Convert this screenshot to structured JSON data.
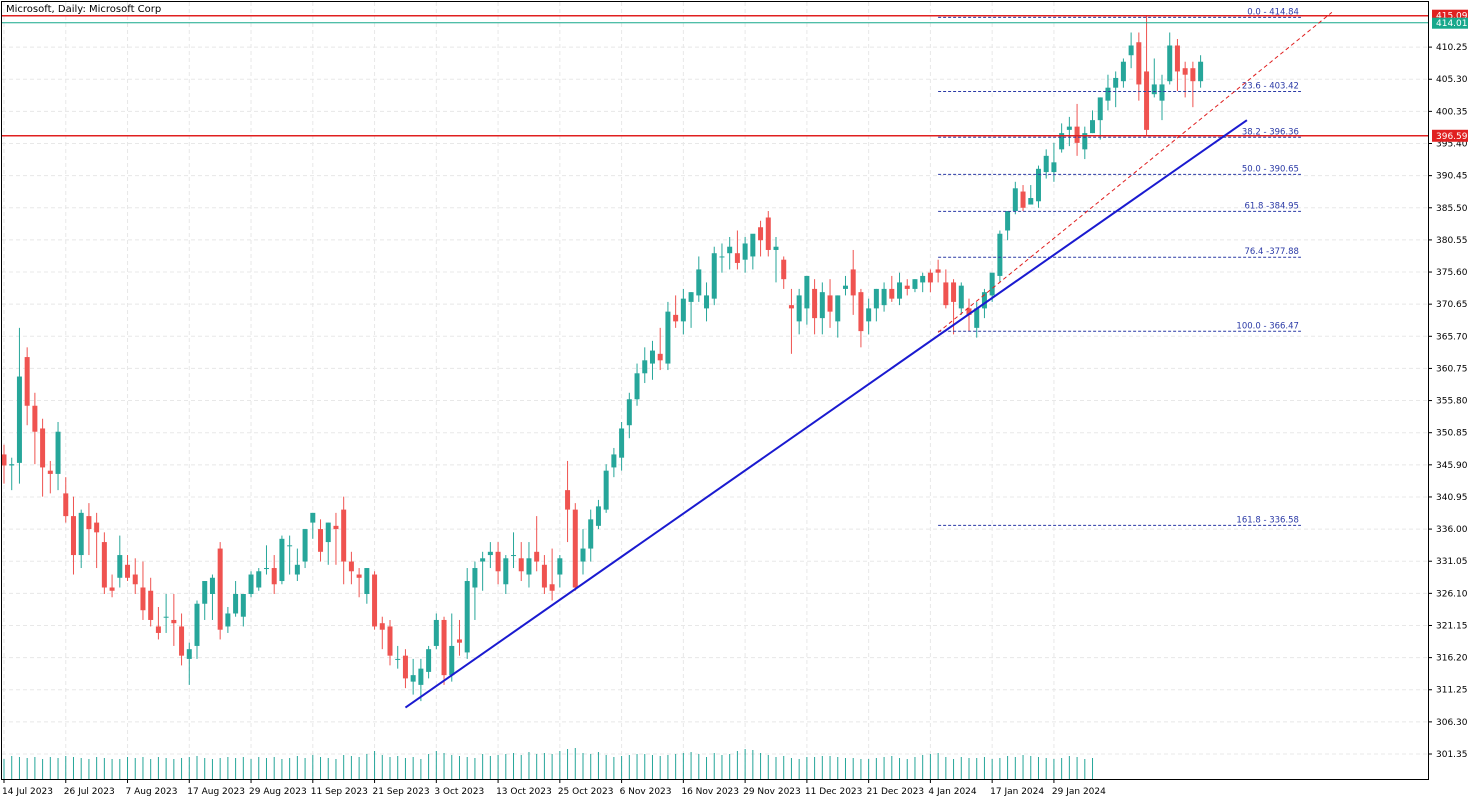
{
  "chart_data": {
    "type": "candlestick",
    "title": "Microsoft, Daily:  Microsoft Corp",
    "ylim": [
      297.5,
      417.2
    ],
    "yticks": [
      "410.25",
      "405.30",
      "400.35",
      "395.40",
      "390.45",
      "385.50",
      "380.55",
      "375.60",
      "370.65",
      "365.70",
      "360.75",
      "355.80",
      "350.85",
      "345.90",
      "340.95",
      "336.00",
      "331.05",
      "326.10",
      "321.15",
      "316.20",
      "311.25",
      "306.30",
      "301.35"
    ],
    "xticks": [
      {
        "label": "14 Jul 2023",
        "index": 0
      },
      {
        "label": "26 Jul 2023",
        "index": 8
      },
      {
        "label": "7 Aug 2023",
        "index": 16
      },
      {
        "label": "17 Aug 2023",
        "index": 24
      },
      {
        "label": "29 Aug 2023",
        "index": 32
      },
      {
        "label": "11 Sep 2023",
        "index": 40
      },
      {
        "label": "21 Sep 2023",
        "index": 48
      },
      {
        "label": "3 Oct 2023",
        "index": 56
      },
      {
        "label": "13 Oct 2023",
        "index": 64
      },
      {
        "label": "25 Oct 2023",
        "index": 72
      },
      {
        "label": "6 Nov 2023",
        "index": 80
      },
      {
        "label": "16 Nov 2023",
        "index": 88
      },
      {
        "label": "29 Nov 2023",
        "index": 96
      },
      {
        "label": "11 Dec 2023",
        "index": 104
      },
      {
        "label": "21 Dec 2023",
        "index": 112
      },
      {
        "label": "4 Jan 2024",
        "index": 120
      },
      {
        "label": "17 Jan 2024",
        "index": 128
      },
      {
        "label": "29 Jan 2024",
        "index": 136
      }
    ],
    "candles": [
      [
        347.5,
        349.0,
        343.0,
        345.8
      ],
      [
        345.8,
        347.0,
        342.0,
        346.0
      ],
      [
        346.2,
        367.0,
        343.0,
        359.5
      ],
      [
        362.5,
        364.0,
        352.0,
        355.0
      ],
      [
        355.0,
        357.0,
        346.0,
        351.0
      ],
      [
        351.5,
        353.0,
        341.0,
        345.5
      ],
      [
        345.0,
        346.5,
        341.5,
        344.5
      ],
      [
        344.5,
        352.5,
        342.0,
        351.0
      ],
      [
        341.5,
        344.0,
        337.0,
        338.0
      ],
      [
        338.0,
        341.0,
        329.0,
        332.0
      ],
      [
        332.0,
        339.0,
        330.0,
        338.5
      ],
      [
        338.0,
        340.0,
        332.0,
        336.0
      ],
      [
        337.0,
        338.5,
        330.0,
        335.5
      ],
      [
        334.0,
        335.5,
        326.0,
        327.0
      ],
      [
        327.0,
        329.0,
        325.5,
        326.5
      ],
      [
        328.5,
        335.0,
        327.0,
        332.0
      ],
      [
        330.5,
        332.0,
        328.0,
        328.5
      ],
      [
        329.0,
        331.5,
        326.0,
        327.5
      ],
      [
        327.0,
        331.0,
        322.0,
        323.5
      ],
      [
        326.5,
        328.5,
        321.0,
        322.0
      ],
      [
        321.0,
        324.0,
        319.0,
        320.0
      ],
      [
        322.5,
        326.0,
        320.0,
        322.5
      ],
      [
        322.0,
        326.0,
        318.0,
        321.5
      ],
      [
        321.0,
        323.0,
        315.0,
        316.5
      ],
      [
        316.0,
        318.5,
        312.0,
        317.5
      ],
      [
        318.0,
        325.0,
        316.0,
        324.5
      ],
      [
        324.5,
        328.0,
        322.0,
        328.0
      ],
      [
        326.0,
        329.0,
        322.0,
        328.5
      ],
      [
        333.0,
        334.0,
        319.0,
        320.5
      ],
      [
        321.0,
        324.0,
        320.0,
        323.0
      ],
      [
        323.0,
        328.0,
        322.5,
        326.0
      ],
      [
        322.5,
        325.5,
        321.0,
        326.0
      ],
      [
        326.0,
        329.5,
        325.5,
        329.0
      ],
      [
        327.0,
        330.0,
        326.5,
        329.5
      ],
      [
        330.0,
        333.5,
        329.0,
        330.0
      ],
      [
        330.0,
        332.0,
        326.0,
        327.5
      ],
      [
        328.0,
        335.0,
        327.5,
        334.5
      ],
      [
        333.5,
        335.0,
        329.0,
        333.5
      ],
      [
        329.0,
        333.0,
        328.0,
        330.5
      ],
      [
        331.0,
        336.0,
        330.0,
        336.0
      ],
      [
        337.0,
        338.5,
        334.5,
        338.5
      ],
      [
        336.0,
        337.5,
        331.0,
        332.5
      ],
      [
        334.0,
        337.0,
        330.5,
        337.0
      ],
      [
        336.5,
        338.5,
        330.5,
        336.0
      ],
      [
        339.0,
        341.0,
        327.5,
        331.0
      ],
      [
        331.0,
        332.5,
        327.5,
        329.5
      ],
      [
        329.0,
        330.0,
        325.5,
        328.5
      ],
      [
        326.0,
        330.0,
        324.5,
        330.0
      ],
      [
        329.0,
        329.5,
        320.5,
        321.0
      ],
      [
        321.5,
        322.5,
        317.5,
        320.5
      ],
      [
        321.0,
        322.0,
        315.0,
        316.5
      ],
      [
        316.0,
        318.0,
        314.5,
        316.0
      ],
      [
        316.5,
        317.5,
        311.5,
        313.0
      ],
      [
        312.5,
        316.0,
        310.5,
        313.5
      ],
      [
        312.0,
        316.0,
        309.5,
        314.5
      ],
      [
        314.0,
        318.0,
        313.0,
        317.5
      ],
      [
        318.0,
        323.0,
        317.5,
        322.0
      ],
      [
        322.0,
        322.5,
        312.0,
        313.5
      ],
      [
        313.5,
        323.0,
        312.5,
        318.0
      ],
      [
        319.0,
        322.0,
        316.5,
        318.5
      ],
      [
        317.0,
        330.0,
        316.0,
        328.0
      ],
      [
        327.0,
        331.0,
        322.0,
        330.0
      ],
      [
        331.0,
        332.5,
        326.5,
        331.5
      ],
      [
        332.0,
        334.0,
        330.0,
        332.5
      ],
      [
        332.5,
        334.0,
        327.5,
        329.5
      ],
      [
        327.5,
        332.0,
        326.0,
        331.5
      ],
      [
        332.0,
        335.5,
        330.0,
        332.0
      ],
      [
        331.5,
        334.0,
        328.0,
        329.5
      ],
      [
        329.0,
        334.0,
        327.0,
        331.5
      ],
      [
        332.5,
        338.0,
        329.5,
        331.0
      ],
      [
        330.5,
        332.0,
        326.0,
        327.0
      ],
      [
        327.5,
        333.0,
        325.0,
        326.5
      ],
      [
        329.0,
        332.0,
        327.0,
        331.5
      ],
      [
        342.0,
        346.5,
        334.0,
        339.0
      ],
      [
        339.0,
        340.0,
        326.5,
        327.0
      ],
      [
        331.0,
        336.0,
        329.0,
        333.0
      ],
      [
        333.0,
        339.0,
        331.0,
        337.5
      ],
      [
        336.5,
        340.5,
        336.0,
        339.5
      ],
      [
        339.0,
        346.0,
        338.5,
        345.0
      ],
      [
        345.5,
        348.5,
        344.0,
        347.5
      ],
      [
        347.0,
        352.5,
        345.0,
        351.5
      ],
      [
        352.0,
        357.0,
        350.0,
        356.0
      ],
      [
        356.0,
        361.5,
        355.0,
        360.0
      ],
      [
        360.0,
        364.0,
        358.5,
        362.0
      ],
      [
        361.5,
        365.0,
        359.0,
        363.5
      ],
      [
        363.0,
        367.0,
        360.5,
        362.0
      ],
      [
        361.5,
        371.0,
        360.5,
        369.5
      ],
      [
        369.0,
        372.0,
        367.0,
        368.0
      ],
      [
        368.0,
        373.0,
        366.0,
        371.5
      ],
      [
        371.0,
        372.5,
        367.0,
        372.5
      ],
      [
        372.0,
        378.0,
        371.0,
        376.0
      ],
      [
        370.0,
        374.0,
        368.0,
        372.0
      ],
      [
        371.5,
        379.5,
        370.5,
        378.5
      ],
      [
        378.0,
        380.0,
        375.5,
        378.0
      ],
      [
        378.5,
        381.0,
        376.0,
        379.5
      ],
      [
        378.5,
        382.0,
        376.0,
        377.0
      ],
      [
        377.5,
        381.0,
        375.5,
        380.0
      ],
      [
        378.0,
        381.0,
        376.0,
        381.5
      ],
      [
        382.5,
        383.5,
        378.0,
        380.5
      ],
      [
        384.0,
        385.0,
        378.0,
        379.0
      ],
      [
        379.0,
        381.0,
        374.0,
        379.5
      ],
      [
        377.5,
        378.0,
        373.0,
        374.5
      ],
      [
        370.5,
        373.0,
        363.0,
        370.0
      ],
      [
        368.0,
        373.0,
        366.0,
        372.0
      ],
      [
        370.0,
        375.0,
        367.5,
        375.0
      ],
      [
        373.0,
        374.5,
        366.0,
        368.5
      ],
      [
        368.5,
        374.0,
        366.0,
        372.5
      ],
      [
        372.0,
        374.5,
        367.0,
        369.5
      ],
      [
        368.0,
        372.0,
        365.5,
        372.0
      ],
      [
        373.0,
        375.0,
        372.0,
        373.5
      ],
      [
        376.0,
        379.0,
        369.0,
        372.0
      ],
      [
        372.5,
        373.0,
        364.0,
        366.5
      ],
      [
        368.0,
        371.5,
        366.0,
        370.0
      ],
      [
        370.0,
        373.0,
        368.0,
        373.0
      ],
      [
        370.5,
        374.0,
        369.5,
        373.0
      ],
      [
        373.0,
        375.0,
        371.0,
        371.5
      ],
      [
        371.5,
        375.5,
        370.5,
        374.0
      ],
      [
        373.5,
        374.5,
        372.0,
        373.0
      ],
      [
        373.0,
        374.5,
        372.5,
        374.5
      ],
      [
        374.0,
        375.5,
        372.5,
        375.0
      ],
      [
        375.5,
        376.0,
        372.5,
        374.0
      ],
      [
        376.0,
        377.5,
        374.0,
        375.5
      ],
      [
        374.0,
        376.0,
        370.0,
        370.5
      ],
      [
        374.0,
        374.5,
        366.0,
        371.0
      ],
      [
        370.0,
        374.0,
        369.0,
        373.5
      ],
      [
        370.0,
        371.5,
        366.5,
        369.0
      ],
      [
        367.0,
        371.0,
        365.5,
        370.0
      ],
      [
        370.0,
        373.0,
        368.5,
        372.5
      ],
      [
        372.0,
        375.0,
        371.0,
        375.5
      ],
      [
        375.0,
        382.0,
        374.0,
        381.5
      ],
      [
        382.0,
        385.0,
        380.5,
        385.0
      ],
      [
        385.0,
        389.5,
        384.5,
        388.5
      ],
      [
        388.0,
        389.0,
        385.0,
        385.5
      ],
      [
        386.0,
        389.0,
        386.0,
        387.0
      ],
      [
        386.5,
        392.0,
        385.5,
        391.5
      ],
      [
        391.0,
        394.5,
        390.0,
        393.5
      ],
      [
        391.0,
        395.5,
        389.5,
        392.5
      ],
      [
        394.5,
        398.5,
        394.0,
        397.0
      ],
      [
        397.5,
        399.5,
        395.0,
        398.0
      ],
      [
        398.0,
        401.5,
        393.5,
        395.5
      ],
      [
        394.5,
        398.0,
        393.0,
        397.0
      ],
      [
        397.0,
        400.5,
        397.0,
        399.0
      ],
      [
        399.0,
        402.5,
        396.0,
        402.5
      ],
      [
        402.0,
        406.0,
        400.5,
        404.0
      ],
      [
        404.0,
        406.5,
        401.0,
        405.5
      ],
      [
        405.0,
        408.5,
        404.0,
        408.0
      ],
      [
        409.0,
        412.5,
        407.0,
        410.5
      ],
      [
        411.0,
        412.5,
        402.0,
        404.5
      ],
      [
        406.5,
        415.0,
        396.5,
        397.5
      ],
      [
        403.0,
        408.5,
        402.5,
        404.5
      ],
      [
        402.0,
        406.0,
        399.0,
        404.5
      ],
      [
        405.0,
        412.5,
        404.5,
        410.5
      ],
      [
        410.5,
        411.5,
        403.5,
        406.5
      ],
      [
        407.0,
        408.0,
        402.5,
        406.0
      ],
      [
        407.0,
        408.0,
        401.0,
        405.0
      ],
      [
        405.0,
        409.0,
        404.0,
        408.0
      ]
    ],
    "volumes": [
      20,
      23,
      22,
      21,
      22,
      20,
      22,
      21,
      23,
      22,
      21,
      20,
      22,
      21,
      20,
      20,
      22,
      21,
      22,
      20,
      22,
      21,
      20,
      21,
      22,
      23,
      21,
      20,
      21,
      22,
      21,
      22,
      20,
      22,
      21,
      22,
      20,
      21,
      23,
      21,
      24,
      22,
      21,
      20,
      24,
      23,
      22,
      25,
      28,
      24,
      22,
      23,
      21,
      22,
      20,
      25,
      28,
      26,
      24,
      23,
      22,
      21,
      25,
      23,
      24,
      25,
      26,
      24,
      27,
      25,
      26,
      25,
      28,
      30,
      31,
      26,
      25,
      27,
      24,
      22,
      23,
      24,
      25,
      25,
      24,
      23,
      24,
      25,
      26,
      27,
      25,
      22,
      26,
      24,
      25,
      28,
      30,
      29,
      26,
      24,
      22,
      23,
      21,
      20,
      22,
      22,
      23,
      23,
      22,
      21,
      21,
      20,
      20,
      21,
      22,
      23,
      21,
      20,
      22,
      24,
      25,
      26,
      22,
      20,
      22,
      21,
      21,
      22,
      20,
      21,
      23,
      22,
      24,
      23,
      22,
      21,
      20,
      21,
      23,
      22,
      20,
      21
    ],
    "fibonacci": [
      {
        "label": "0.0 - 414.84",
        "value": 414.84
      },
      {
        "label": "23.6 - 403.42",
        "value": 403.42
      },
      {
        "label": "38.2 - 396.36",
        "value": 396.36
      },
      {
        "label": "50.0 - 390.65",
        "value": 390.65
      },
      {
        "label": "61.8 -384.95",
        "value": 384.95
      },
      {
        "label": "76.4 -377.88",
        "value": 377.88
      },
      {
        "label": "100.0 - 366.47",
        "value": 366.47
      },
      {
        "label": "161.8 - 336.58",
        "value": 336.58
      }
    ],
    "fib_start_index": 121,
    "fib_end_index": 168,
    "hlines": [
      {
        "label": "415.09",
        "value": 415.09,
        "color": "#e02020"
      },
      {
        "label": "396.59",
        "value": 396.59,
        "color": "#e02020"
      }
    ],
    "price_tag": {
      "label": "414.01",
      "value": 414.01,
      "color": "#17a88c"
    },
    "trendline": {
      "start": [
        52,
        308.5
      ],
      "end": [
        161,
        399.0
      ],
      "color": "#1a1ad0"
    },
    "trendline_dashed": {
      "start": [
        121,
        366.3
      ],
      "end": [
        172,
        415.6
      ],
      "color": "#e02020"
    },
    "colors": {
      "up": "#26a69a",
      "down": "#ef5350",
      "volume": "#26a69a",
      "grid": "#e8e8e8",
      "fib": "#2b3aa6"
    }
  }
}
